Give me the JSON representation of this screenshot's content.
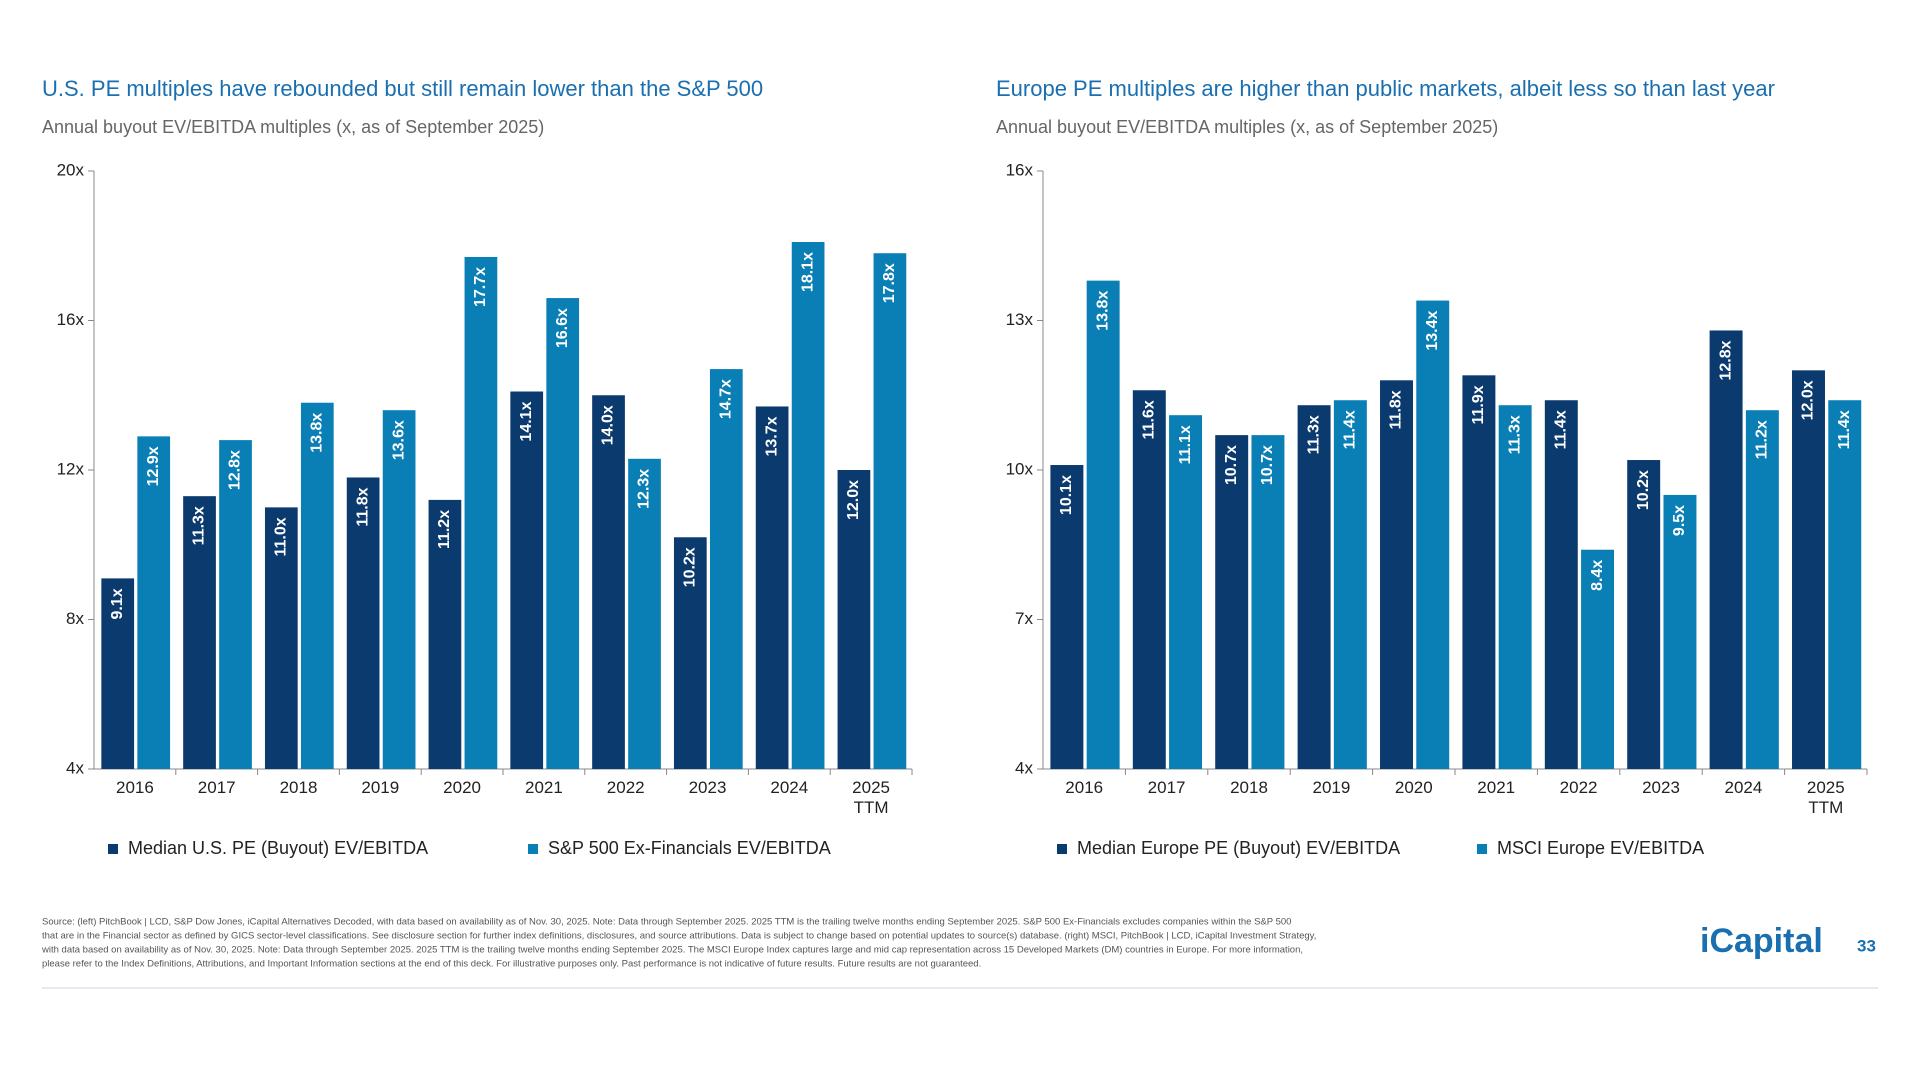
{
  "chart_data": [
    {
      "type": "bar",
      "title": "U.S. PE multiples have rebounded but still remain lower than the S&P 500",
      "subtitle": "Annual buyout EV/EBITDA multiples (x, as of September 2025)",
      "categories": [
        "2016",
        "2017",
        "2018",
        "2019",
        "2020",
        "2021",
        "2022",
        "2023",
        "2024",
        "2025\nTTM"
      ],
      "series": [
        {
          "name": "Median U.S. PE (Buyout) EV/EBITDA",
          "color": "#0b3a6e",
          "values": [
            9.1,
            11.3,
            11.0,
            11.8,
            11.2,
            14.1,
            14.0,
            10.2,
            13.7,
            12.0
          ],
          "value_labels": [
            "9.1x",
            "11.3x",
            "11.0x",
            "11.8x",
            "11.2x",
            "14.1x",
            "14.0x",
            "10.2x",
            "13.7x",
            "12.0x"
          ]
        },
        {
          "name": "S&P 500 Ex-Financials EV/EBITDA",
          "color": "#0a7fb5",
          "values": [
            12.9,
            12.8,
            13.8,
            13.6,
            17.7,
            16.6,
            12.3,
            14.7,
            18.1,
            17.8
          ],
          "value_labels": [
            "12.9x",
            "12.8x",
            "13.8x",
            "13.6x",
            "17.7x",
            "16.6x",
            "12.3x",
            "14.7x",
            "18.1x",
            "17.8x"
          ]
        }
      ],
      "ylim": [
        4,
        20
      ],
      "yticks": [
        {
          "value": 4,
          "label": "4x"
        },
        {
          "value": 8,
          "label": "8x"
        },
        {
          "value": 12,
          "label": "12x"
        },
        {
          "value": 16,
          "label": "16x"
        },
        {
          "value": 20,
          "label": "20x"
        }
      ],
      "legend": "bottom"
    },
    {
      "type": "bar",
      "title": "Europe PE multiples are higher than public markets, albeit less so than last year",
      "subtitle": "Annual buyout EV/EBITDA multiples (x, as of September 2025)",
      "categories": [
        "2016",
        "2017",
        "2018",
        "2019",
        "2020",
        "2021",
        "2022",
        "2023",
        "2024",
        "2025\nTTM"
      ],
      "series": [
        {
          "name": "Median Europe PE (Buyout) EV/EBITDA",
          "color": "#0b3a6e",
          "values": [
            10.1,
            11.6,
            10.7,
            11.3,
            11.8,
            11.9,
            11.4,
            10.2,
            12.8,
            12.0
          ],
          "value_labels": [
            "10.1x",
            "11.6x",
            "10.7x",
            "11.3x",
            "11.8x",
            "11.9x",
            "11.4x",
            "10.2x",
            "12.8x",
            "12.0x"
          ]
        },
        {
          "name": "MSCI Europe EV/EBITDA",
          "color": "#0a7fb5",
          "values": [
            13.8,
            11.1,
            10.7,
            11.4,
            13.4,
            11.3,
            8.4,
            9.5,
            11.2,
            11.4
          ],
          "value_labels": [
            "13.8x",
            "11.1x",
            "10.7x",
            "11.4x",
            "13.4x",
            "11.3x",
            "8.4x",
            "9.5x",
            "11.2x",
            "11.4x"
          ]
        }
      ],
      "ylim": [
        4,
        16
      ],
      "yticks": [
        {
          "value": 4,
          "label": "4x"
        },
        {
          "value": 7,
          "label": "7x"
        },
        {
          "value": 10,
          "label": "10x"
        },
        {
          "value": 13,
          "label": "13x"
        },
        {
          "value": 16,
          "label": "16x"
        }
      ],
      "legend": "bottom"
    }
  ],
  "footer": {
    "source": [
      "Source: (left) PitchBook | LCD, S&P Dow Jones, iCapital Alternatives Decoded, with data based on availability as of Nov. 30, 2025. Note: Data through September 2025. 2025 TTM is the trailing twelve months ending September 2025. S&P 500 Ex-Financials excludes companies within the S&P 500",
      "that are in the Financial sector as defined by GICS sector-level classifications. See disclosure section for further index definitions, disclosures, and source attributions. Data is subject to change based on potential updates to source(s) database. (right) MSCI, PitchBook | LCD, iCapital Investment Strategy,",
      "with data based on availability as of Nov. 30, 2025. Note: Data through September 2025. 2025 TTM is the trailing twelve months ending September 2025. The MSCI Europe Index captures large and mid cap representation across 15 Developed Markets (DM) countries in Europe. For more information,",
      "please refer to the Index Definitions, Attributions, and Important Information sections at the end of this deck. For illustrative purposes only. Past performance is not indicative of future results. Future results are not guaranteed."
    ],
    "logo": "iCapital",
    "page": "33"
  }
}
